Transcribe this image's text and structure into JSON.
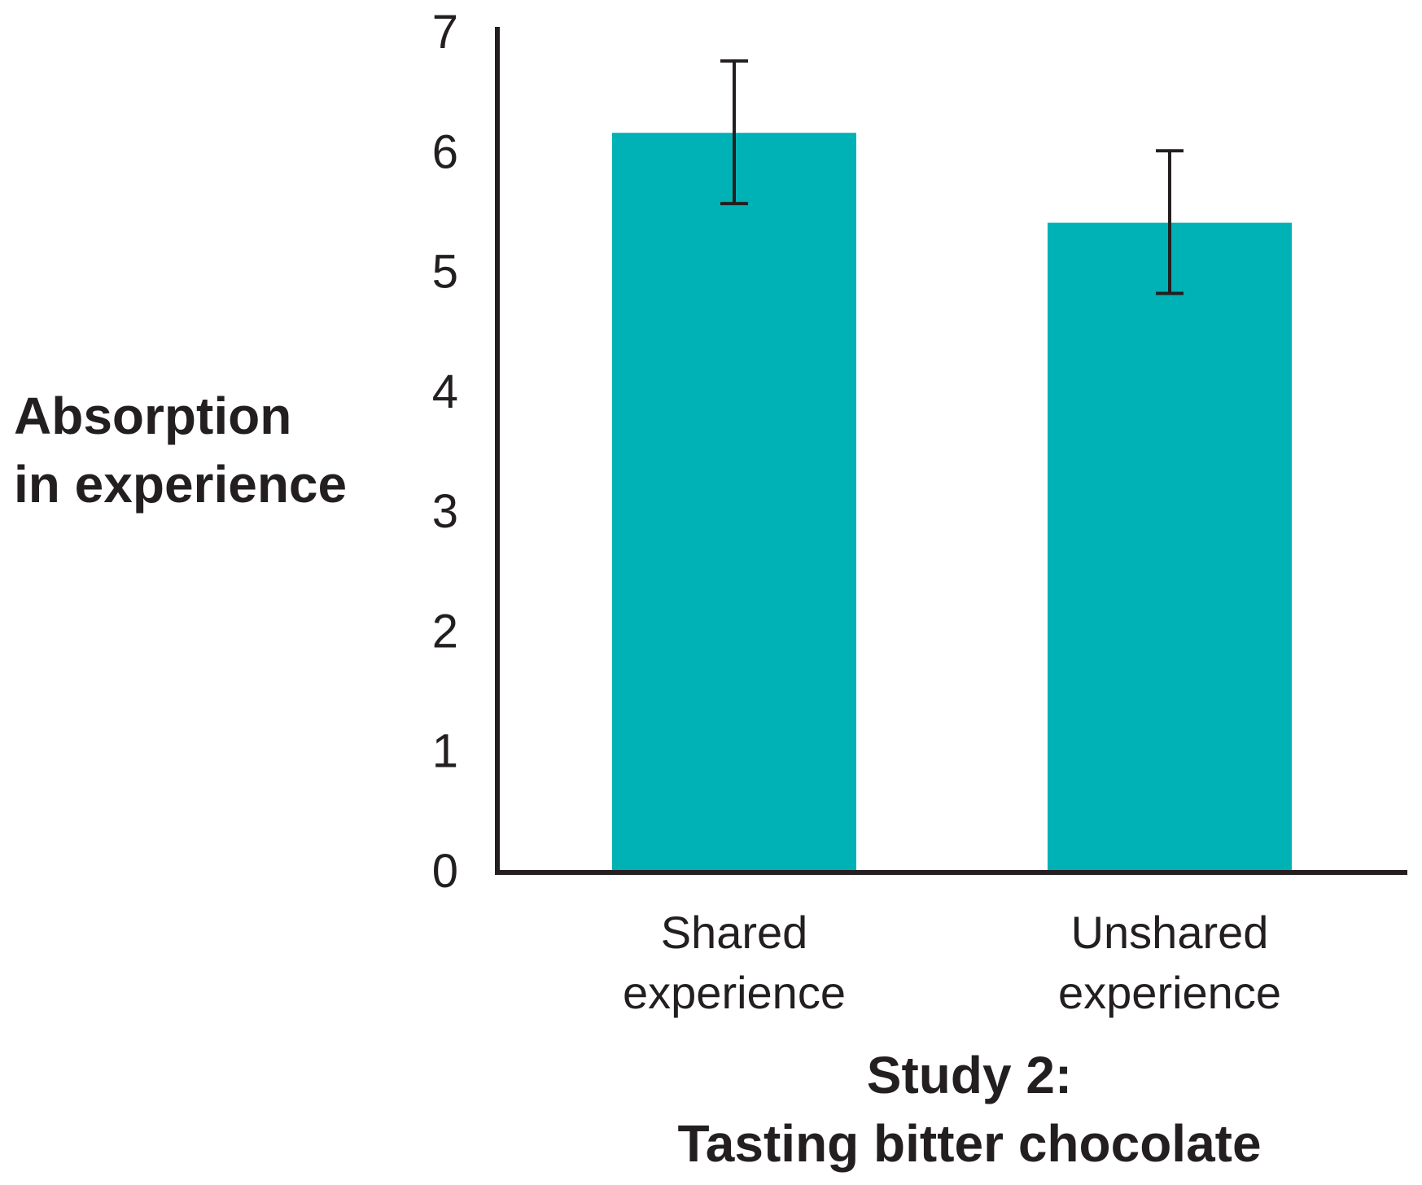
{
  "chart_data": {
    "type": "bar",
    "title": "Study 2: Tasting bitter chocolate",
    "title_lines": [
      "Study 2:",
      "Tasting bitter chocolate"
    ],
    "xlabel": "",
    "ylabel": "Absorption in experience",
    "ylabel_lines": [
      "Absorption",
      "in experience"
    ],
    "ylim": [
      0,
      7
    ],
    "yticks": [
      "0",
      "1",
      "2",
      "3",
      "4",
      "5",
      "6",
      "7"
    ],
    "grid": false,
    "categories": [
      "Shared experience",
      "Unshared experience"
    ],
    "category_lines": [
      [
        "Shared",
        "experience"
      ],
      [
        "Unshared",
        "experience"
      ]
    ],
    "values": [
      6.15,
      5.4
    ],
    "error_bars": [
      [
        5.56,
        6.75
      ],
      [
        4.81,
        6.0
      ]
    ],
    "bar_color": "#00b2b5",
    "axis_color": "#231f20"
  }
}
